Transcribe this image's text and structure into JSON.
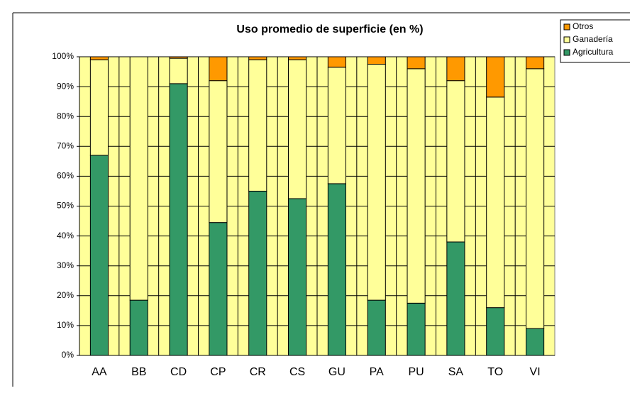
{
  "chart_data": {
    "type": "stacked_bar_percent",
    "title": "Uso promedio de superficie (en %)",
    "categories": [
      "AA",
      "BB",
      "CD",
      "CP",
      "CR",
      "CS",
      "GU",
      "PA",
      "PU",
      "SA",
      "TO",
      "VI"
    ],
    "series": [
      {
        "name": "Agricultura",
        "color": "#339966",
        "values": [
          67,
          18.5,
          91,
          44.5,
          55,
          52.5,
          57.5,
          18.5,
          17.5,
          38,
          16,
          9
        ]
      },
      {
        "name": "Ganadería",
        "color": "#ffff99",
        "values": [
          32,
          81.5,
          8.5,
          47.5,
          44,
          46.5,
          39,
          79,
          78.5,
          54,
          70.5,
          87
        ]
      },
      {
        "name": "Otros",
        "color": "#ff9900",
        "values": [
          1,
          0,
          0.5,
          8,
          1,
          1,
          3.5,
          2.5,
          4,
          8,
          13.5,
          4
        ]
      }
    ],
    "ylim": [
      0,
      100
    ],
    "yticks": [
      {
        "value": 0,
        "label": "0%"
      },
      {
        "value": 10,
        "label": "10%"
      },
      {
        "value": 20,
        "label": "20%"
      },
      {
        "value": 30,
        "label": "30%"
      },
      {
        "value": 40,
        "label": "40%"
      },
      {
        "value": 50,
        "label": "50%"
      },
      {
        "value": 60,
        "label": "60%"
      },
      {
        "value": 70,
        "label": "70%"
      },
      {
        "value": 80,
        "label": "80%"
      },
      {
        "value": 90,
        "label": "90%"
      },
      {
        "value": 100,
        "label": "100%"
      }
    ],
    "grid": true,
    "plot_background": "#ffff99",
    "legend": "top-right"
  }
}
